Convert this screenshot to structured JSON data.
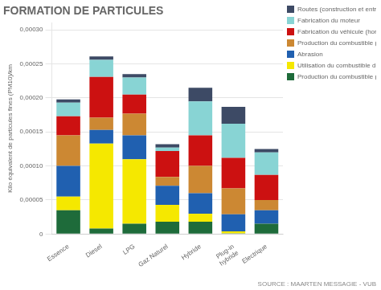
{
  "chart_data": {
    "type": "bar",
    "title": "FORMATION DE PARTICULES",
    "ylabel": "Kilo équivalent de particules fines (PM10)/km",
    "annotations": [
      "SOURCE : MAARTEN MESSAGIE - VUB"
    ],
    "categories": [
      "Essence",
      "Diesel",
      "LPG",
      "Gaz Naturel",
      "Hybride",
      "Plug-in\nhybride",
      "Electrique"
    ],
    "stacked": true,
    "grid": true,
    "legend": "right",
    "ylim": [
      0,
      0.00031
    ],
    "yticks": [
      0,
      {
        "value": 5e-05,
        "label": "0,00005"
      },
      {
        "value": 0.0001,
        "label": "0,00010"
      },
      {
        "value": 0.00015,
        "label": "0,00015"
      },
      {
        "value": 0.0002,
        "label": "0,00020"
      },
      {
        "value": 0.00025,
        "label": "0,00025"
      },
      {
        "value": 0.0003,
        "label": "0,00030"
      }
    ],
    "series": [
      {
        "name": "Production du combustible (par la Belgique)",
        "color": "#1e6b3a",
        "values": [
          3.5e-05,
          8e-06,
          1.5e-05,
          1.8e-05,
          1.8e-05,
          1e-06,
          1.5e-05
        ]
      },
      {
        "name": "Utilisation du combustible du véhicule en Belgique",
        "color": "#f5e800",
        "values": [
          2e-05,
          0.000125,
          9.5e-05,
          2.5e-05,
          1.2e-05,
          3e-06,
          0.0
        ]
      },
      {
        "name": "Abrasion",
        "color": "#2060b0",
        "values": [
          4.5e-05,
          2e-05,
          3.5e-05,
          2.8e-05,
          3e-05,
          2.5e-05,
          2e-05
        ]
      },
      {
        "name": "Production du combustible (par le reste du monde)",
        "color": "#cc8833",
        "values": [
          4.5e-05,
          1.8e-05,
          3.2e-05,
          1.3e-05,
          4e-05,
          3.8e-05,
          1.5e-05
        ]
      },
      {
        "name": "Fabrication du véhicule (hors moteur)",
        "color": "#cc1111",
        "values": [
          2.8e-05,
          6e-05,
          2.8e-05,
          3.8e-05,
          4.5e-05,
          4.5e-05,
          3.7e-05
        ]
      },
      {
        "name": "Fabrication du moteur",
        "color": "#88d4d4",
        "values": [
          2e-05,
          2.5e-05,
          2.5e-05,
          5e-06,
          5e-05,
          5e-05,
          3.3e-05
        ]
      },
      {
        "name": "Routes (construction et entretien)",
        "color": "#3d4a65",
        "values": [
          5e-06,
          5e-06,
          5e-06,
          5e-06,
          2e-05,
          2.5e-05,
          5e-06
        ]
      }
    ]
  }
}
